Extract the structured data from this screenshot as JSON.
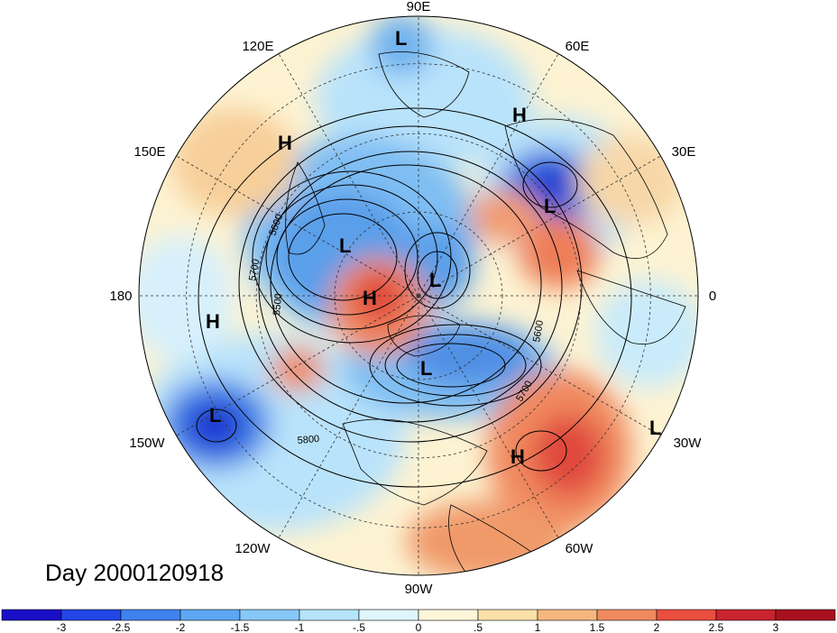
{
  "map": {
    "day_label": "Day 2000120918",
    "longitude_labels": [
      "90E",
      "60E",
      "30E",
      "0",
      "30W",
      "60W",
      "90W",
      "120W",
      "150W",
      "180",
      "150E",
      "120E"
    ],
    "pressure_centers": [
      {
        "type": "L"
      },
      {
        "type": "H"
      },
      {
        "type": "L"
      },
      {
        "type": "H"
      },
      {
        "type": "L"
      },
      {
        "type": "L"
      },
      {
        "type": "H"
      },
      {
        "type": "L"
      },
      {
        "type": "H"
      },
      {
        "type": "L"
      },
      {
        "type": "H"
      },
      {
        "type": "L"
      }
    ],
    "contour_labels": [
      "5600",
      "5700",
      "5500",
      "5600",
      "5700",
      "5800"
    ],
    "colorbar": {
      "ticks": [
        "-3",
        "-2.5",
        "-2",
        "-1.5",
        "-1",
        "-.5",
        "0",
        ".5",
        "1",
        "1.5",
        "2",
        "2.5",
        "3"
      ],
      "colors": [
        "#1a0fc8",
        "#2346e6",
        "#3f82ee",
        "#5ea7f4",
        "#86c8f8",
        "#b5e4fb",
        "#dff5fc",
        "#fdf6d8",
        "#fbe0a8",
        "#f6b77e",
        "#f08a5e",
        "#ea4e3e",
        "#c92430",
        "#a8101f"
      ]
    }
  }
}
